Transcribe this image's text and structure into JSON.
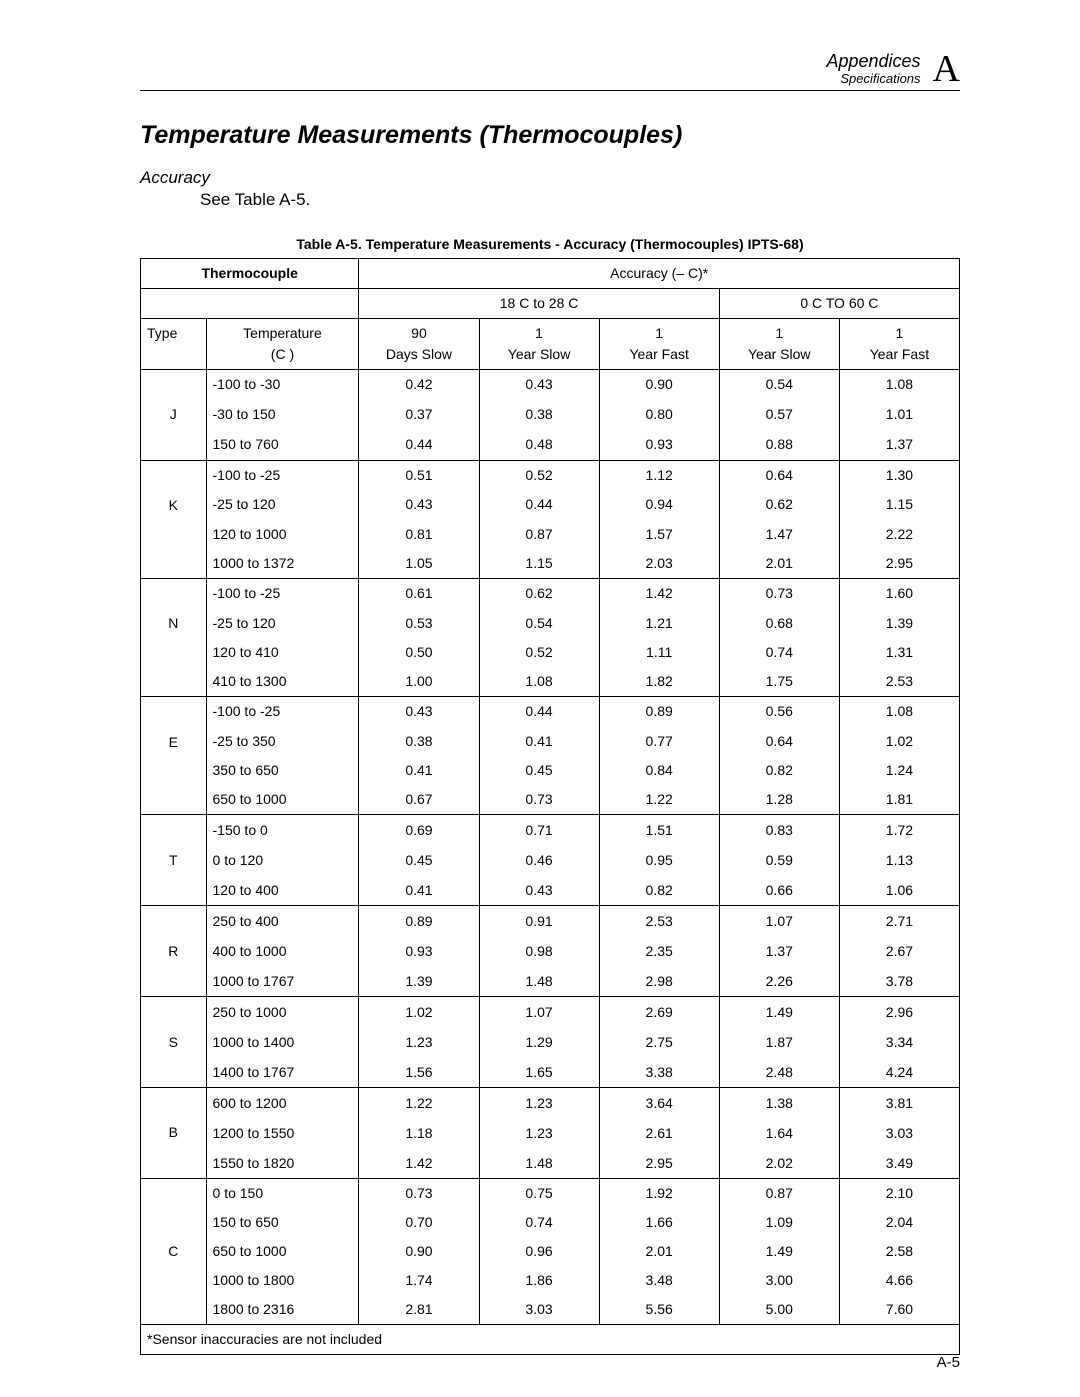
{
  "header": {
    "appendices": "Appendices",
    "spec": "Specifications",
    "letter": "A"
  },
  "title": "Temperature Measurements (Thermocouples)",
  "subhead": "Accuracy",
  "see": "See Table A-5.",
  "caption": "Table A-5. Temperature Measurements - Accuracy (Thermocouples) IPTS-68)",
  "cols": {
    "thermo": "Thermocouple",
    "acc": "Accuracy (–  C)*",
    "rangeA": "18 C to 28 C",
    "rangeB": "0 C TO 60 C",
    "type": "Type",
    "temp": "Temperature (C )",
    "d90s": "90 Days Slow",
    "y1s": "1 Year Slow",
    "y1f": "1 Year Fast",
    "y1s2": "1 Year Slow",
    "y1f2": "1 Year Fast"
  },
  "groups": [
    {
      "type": "J",
      "rows": [
        {
          "t": "-100 to -30",
          "v": [
            "0.42",
            "0.43",
            "0.90",
            "0.54",
            "1.08"
          ]
        },
        {
          "t": "-30 to 150",
          "v": [
            "0.37",
            "0.38",
            "0.80",
            "0.57",
            "1.01"
          ]
        },
        {
          "t": "150 to 760",
          "v": [
            "0.44",
            "0.48",
            "0.93",
            "0.88",
            "1.37"
          ]
        }
      ]
    },
    {
      "type": "K",
      "rows": [
        {
          "t": "-100 to -25",
          "v": [
            "0.51",
            "0.52",
            "1.12",
            "0.64",
            "1.30"
          ]
        },
        {
          "t": "-25 to 120",
          "v": [
            "0.43",
            "0.44",
            "0.94",
            "0.62",
            "1.15"
          ]
        },
        {
          "t": "120 to 1000",
          "v": [
            "0.81",
            "0.87",
            "1.57",
            "1.47",
            "2.22"
          ]
        },
        {
          "t": "1000 to 1372",
          "v": [
            "1.05",
            "1.15",
            "2.03",
            "2.01",
            "2.95"
          ]
        }
      ]
    },
    {
      "type": "N",
      "rows": [
        {
          "t": "-100 to -25",
          "v": [
            "0.61",
            "0.62",
            "1.42",
            "0.73",
            "1.60"
          ]
        },
        {
          "t": "-25 to 120",
          "v": [
            "0.53",
            "0.54",
            "1.21",
            "0.68",
            "1.39"
          ]
        },
        {
          "t": "120 to 410",
          "v": [
            "0.50",
            "0.52",
            "1.11",
            "0.74",
            "1.31"
          ]
        },
        {
          "t": "410 to 1300",
          "v": [
            "1.00",
            "1.08",
            "1.82",
            "1.75",
            "2.53"
          ]
        }
      ]
    },
    {
      "type": "E",
      "rows": [
        {
          "t": "-100 to -25",
          "v": [
            "0.43",
            "0.44",
            "0.89",
            "0.56",
            "1.08"
          ]
        },
        {
          "t": "-25 to 350",
          "v": [
            "0.38",
            "0.41",
            "0.77",
            "0.64",
            "1.02"
          ]
        },
        {
          "t": "350 to 650",
          "v": [
            "0.41",
            "0.45",
            "0.84",
            "0.82",
            "1.24"
          ]
        },
        {
          "t": "650 to 1000",
          "v": [
            "0.67",
            "0.73",
            "1.22",
            "1.28",
            "1.81"
          ]
        }
      ]
    },
    {
      "type": "T",
      "rows": [
        {
          "t": "-150 to 0",
          "v": [
            "0.69",
            "0.71",
            "1.51",
            "0.83",
            "1.72"
          ]
        },
        {
          "t": "0 to 120",
          "v": [
            "0.45",
            "0.46",
            "0.95",
            "0.59",
            "1.13"
          ]
        },
        {
          "t": "120 to 400",
          "v": [
            "0.41",
            "0.43",
            "0.82",
            "0.66",
            "1.06"
          ]
        }
      ]
    },
    {
      "type": "R",
      "rows": [
        {
          "t": "250 to 400",
          "v": [
            "0.89",
            "0.91",
            "2.53",
            "1.07",
            "2.71"
          ]
        },
        {
          "t": "400 to 1000",
          "v": [
            "0.93",
            "0.98",
            "2.35",
            "1.37",
            "2.67"
          ]
        },
        {
          "t": "1000 to 1767",
          "v": [
            "1.39",
            "1.48",
            "2.98",
            "2.26",
            "3.78"
          ]
        }
      ]
    },
    {
      "type": "S",
      "rows": [
        {
          "t": "250 to 1000",
          "v": [
            "1.02",
            "1.07",
            "2.69",
            "1.49",
            "2.96"
          ]
        },
        {
          "t": "1000 to 1400",
          "v": [
            "1.23",
            "1.29",
            "2.75",
            "1.87",
            "3.34"
          ]
        },
        {
          "t": "1400 to 1767",
          "v": [
            "1.56",
            "1.65",
            "3.38",
            "2.48",
            "4.24"
          ]
        }
      ]
    },
    {
      "type": "B",
      "rows": [
        {
          "t": "600 to 1200",
          "v": [
            "1.22",
            "1.23",
            "3.64",
            "1.38",
            "3.81"
          ]
        },
        {
          "t": "1200 to 1550",
          "v": [
            "1.18",
            "1.23",
            "2.61",
            "1.64",
            "3.03"
          ]
        },
        {
          "t": "1550 to 1820",
          "v": [
            "1.42",
            "1.48",
            "2.95",
            "2.02",
            "3.49"
          ]
        }
      ]
    },
    {
      "type": "C",
      "rows": [
        {
          "t": "0 to 150",
          "v": [
            "0.73",
            "0.75",
            "1.92",
            "0.87",
            "2.10"
          ]
        },
        {
          "t": "150 to 650",
          "v": [
            "0.70",
            "0.74",
            "1.66",
            "1.09",
            "2.04"
          ]
        },
        {
          "t": "650 to 1000",
          "v": [
            "0.90",
            "0.96",
            "2.01",
            "1.49",
            "2.58"
          ]
        },
        {
          "t": "1000 to 1800",
          "v": [
            "1.74",
            "1.86",
            "3.48",
            "3.00",
            "4.66"
          ]
        },
        {
          "t": "1800 to 2316",
          "v": [
            "2.81",
            "3.03",
            "5.56",
            "5.00",
            "7.60"
          ]
        }
      ]
    }
  ],
  "footnote": "*Sensor inaccuracies are not included",
  "pagenum": "A-5"
}
